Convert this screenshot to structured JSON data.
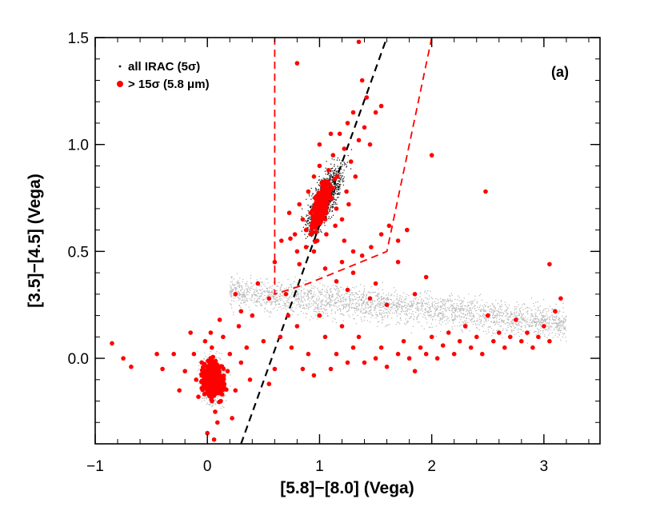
{
  "chart_data": {
    "type": "scatter",
    "panel_label": "(a)",
    "xlabel": "[5.8]−[8.0] (Vega)",
    "ylabel": "[3.5]−[4.5] (Vega)",
    "xlim": [
      -1.0,
      3.5
    ],
    "ylim": [
      -0.4,
      1.5
    ],
    "x_ticks": [
      -1,
      0,
      1,
      2,
      3
    ],
    "x_tick_labels": [
      "−1",
      "0",
      "1",
      "2",
      "3"
    ],
    "y_ticks": [
      0.0,
      0.5,
      1.0,
      1.5
    ],
    "y_tick_labels": [
      "0.0",
      "0.5",
      "1.0",
      "1.5"
    ],
    "legend": {
      "position": "top-left",
      "entries": [
        {
          "label": "all IRAC (5σ)",
          "marker": "small-dot",
          "color": "#000000"
        },
        {
          "label": "> 15σ (5.8 μm)",
          "marker": "filled-circle",
          "color": "#ff0000"
        }
      ]
    },
    "colors": {
      "bright": "#ff0000",
      "faint_agn": "#111111",
      "faint_gray": "#b8b8b8",
      "diagonal_line": "#000000",
      "wedge": "#ff0000"
    },
    "series": [
      {
        "name": "all IRAC (5σ)",
        "note": "very dense distribution; representative clusters",
        "clusters": [
          {
            "shade": "gray",
            "x_range": [
              0.2,
              3.2
            ],
            "y_range": [
              -0.15,
              0.55
            ],
            "count_hint": "thousands",
            "center": [
              1.5,
              0.2
            ]
          },
          {
            "shade": "dark",
            "x_range": [
              0.6,
              1.6
            ],
            "y_range": [
              0.3,
              1.3
            ],
            "count_hint": "hundreds",
            "center": [
              1.05,
              0.75
            ]
          },
          {
            "shade": "gray",
            "x_range": [
              -0.2,
              0.4
            ],
            "y_range": [
              -0.35,
              0.2
            ],
            "count_hint": "hundreds",
            "center": [
              0.05,
              -0.1
            ]
          }
        ]
      },
      {
        "name": "> 15σ (5.8 μm)",
        "points": [
          [
            0.05,
            -0.08
          ],
          [
            0.08,
            -0.1
          ],
          [
            0.02,
            -0.12
          ],
          [
            0.1,
            -0.05
          ],
          [
            0.0,
            -0.15
          ],
          [
            0.12,
            -0.2
          ],
          [
            -0.05,
            -0.02
          ],
          [
            0.15,
            -0.12
          ],
          [
            0.04,
            0.05
          ],
          [
            -0.08,
            -0.18
          ],
          [
            0.18,
            -0.06
          ],
          [
            0.07,
            -0.25
          ],
          [
            -0.02,
            0.08
          ],
          [
            0.2,
            0.02
          ],
          [
            -0.1,
            -0.1
          ],
          [
            0.09,
            -0.3
          ],
          [
            0.25,
            -0.15
          ],
          [
            0.03,
            0.12
          ],
          [
            -0.12,
            0.02
          ],
          [
            0.14,
            0.1
          ],
          [
            0.3,
            -0.02
          ],
          [
            -0.2,
            -0.06
          ],
          [
            0.22,
            -0.28
          ],
          [
            0.0,
            -0.35
          ],
          [
            0.35,
            0.05
          ],
          [
            -0.25,
            -0.15
          ],
          [
            0.28,
            0.15
          ],
          [
            0.11,
            0.18
          ],
          [
            -0.15,
            0.12
          ],
          [
            0.38,
            -0.1
          ],
          [
            0.06,
            -0.38
          ],
          [
            -0.3,
            0.02
          ],
          [
            -0.85,
            0.07
          ],
          [
            -0.75,
            0.0
          ],
          [
            -0.68,
            -0.04
          ],
          [
            -0.4,
            -0.05
          ],
          [
            -0.45,
            0.02
          ],
          [
            0.5,
            0.08
          ],
          [
            0.6,
            -0.05
          ],
          [
            0.55,
            -0.12
          ],
          [
            0.65,
            0.1
          ],
          [
            0.7,
            0.3
          ],
          [
            0.72,
            0.2
          ],
          [
            0.8,
            0.15
          ],
          [
            0.75,
            0.05
          ],
          [
            0.85,
            -0.05
          ],
          [
            0.9,
            0.02
          ],
          [
            0.95,
            -0.08
          ],
          [
            1.0,
            0.2
          ],
          [
            1.05,
            0.1
          ],
          [
            1.1,
            -0.05
          ],
          [
            1.15,
            0.02
          ],
          [
            1.2,
            0.15
          ],
          [
            1.25,
            -0.02
          ],
          [
            1.3,
            0.05
          ],
          [
            1.35,
            0.1
          ],
          [
            1.4,
            -0.02
          ],
          [
            1.5,
            0.0
          ],
          [
            1.55,
            0.05
          ],
          [
            1.6,
            -0.04
          ],
          [
            1.7,
            0.02
          ],
          [
            1.75,
            0.08
          ],
          [
            1.8,
            0.0
          ],
          [
            1.85,
            -0.06
          ],
          [
            1.9,
            0.05
          ],
          [
            1.95,
            0.02
          ],
          [
            2.0,
            0.1
          ],
          [
            2.05,
            0.0
          ],
          [
            2.1,
            0.06
          ],
          [
            2.15,
            0.12
          ],
          [
            2.2,
            0.02
          ],
          [
            2.25,
            0.08
          ],
          [
            2.3,
            0.15
          ],
          [
            2.35,
            0.05
          ],
          [
            2.4,
            0.1
          ],
          [
            2.45,
            0.02
          ],
          [
            2.5,
            0.2
          ],
          [
            2.55,
            0.08
          ],
          [
            2.6,
            0.12
          ],
          [
            2.65,
            0.05
          ],
          [
            2.7,
            0.1
          ],
          [
            2.75,
            0.18
          ],
          [
            2.8,
            0.08
          ],
          [
            2.85,
            0.12
          ],
          [
            2.9,
            0.05
          ],
          [
            2.95,
            0.1
          ],
          [
            3.0,
            0.15
          ],
          [
            3.05,
            0.08
          ],
          [
            3.1,
            0.22
          ],
          [
            3.15,
            0.28
          ],
          [
            3.05,
            0.44
          ],
          [
            2.48,
            0.78
          ],
          [
            2.0,
            0.95
          ],
          [
            1.95,
            0.38
          ],
          [
            1.85,
            0.3
          ],
          [
            1.7,
            0.45
          ],
          [
            1.6,
            0.25
          ],
          [
            1.5,
            0.35
          ],
          [
            1.45,
            0.28
          ],
          [
            1.3,
            0.4
          ],
          [
            1.25,
            0.32
          ],
          [
            1.2,
            0.45
          ],
          [
            1.15,
            0.36
          ],
          [
            1.05,
            0.42
          ],
          [
            0.98,
            0.55
          ],
          [
            0.95,
            0.5
          ],
          [
            0.88,
            0.6
          ],
          [
            0.85,
            0.65
          ],
          [
            0.82,
            0.72
          ],
          [
            0.9,
            0.78
          ],
          [
            0.95,
            0.85
          ],
          [
            1.0,
            0.9
          ],
          [
            1.05,
            0.8
          ],
          [
            1.1,
            0.75
          ],
          [
            1.15,
            0.7
          ],
          [
            1.2,
            0.65
          ],
          [
            1.0,
            0.7
          ],
          [
            0.92,
            0.68
          ],
          [
            0.96,
            0.75
          ],
          [
            1.02,
            0.82
          ],
          [
            1.08,
            0.88
          ],
          [
            1.12,
            0.95
          ],
          [
            1.18,
            1.05
          ],
          [
            1.25,
            1.1
          ],
          [
            1.3,
            1.15
          ],
          [
            1.35,
            1.02
          ],
          [
            1.22,
            0.98
          ],
          [
            1.28,
            0.92
          ],
          [
            1.4,
            1.08
          ],
          [
            1.45,
            1.0
          ],
          [
            1.5,
            1.15
          ],
          [
            1.55,
            1.18
          ],
          [
            1.38,
            1.3
          ],
          [
            1.42,
            1.22
          ],
          [
            1.35,
            1.48
          ],
          [
            0.73,
            0.68
          ],
          [
            0.78,
            0.58
          ],
          [
            0.8,
            0.5
          ],
          [
            0.74,
            0.56
          ],
          [
            0.82,
            0.44
          ],
          [
            0.88,
            0.52
          ],
          [
            0.93,
            0.62
          ],
          [
            1.06,
            0.58
          ],
          [
            1.14,
            0.62
          ],
          [
            1.22,
            0.55
          ],
          [
            1.3,
            0.5
          ],
          [
            1.38,
            0.48
          ],
          [
            1.46,
            0.52
          ],
          [
            1.55,
            0.58
          ],
          [
            1.62,
            0.62
          ],
          [
            1.7,
            0.55
          ],
          [
            1.78,
            0.6
          ],
          [
            0.6,
            0.45
          ],
          [
            0.8,
            1.38
          ],
          [
            0.66,
            0.55
          ],
          [
            0.3,
            0.22
          ],
          [
            0.25,
            0.3
          ],
          [
            0.4,
            0.2
          ],
          [
            0.45,
            0.35
          ],
          [
            0.55,
            0.28
          ],
          [
            1.1,
            1.05
          ],
          [
            1.0,
            1.0
          ],
          [
            1.16,
            0.85
          ],
          [
            1.24,
            0.78
          ],
          [
            1.32,
            0.85
          ],
          [
            1.05,
            0.65
          ],
          [
            0.99,
            0.72
          ],
          [
            1.26,
            0.72
          ]
        ]
      }
    ],
    "overlays": [
      {
        "name": "diagonal-line",
        "style": "dashed",
        "color": "#000000",
        "points": [
          [
            0.3,
            -0.4
          ],
          [
            1.6,
            1.5
          ]
        ]
      },
      {
        "name": "agn-wedge",
        "style": "dashed",
        "color": "#ff0000",
        "points": [
          [
            0.6,
            1.5
          ],
          [
            0.6,
            0.3
          ],
          [
            0.9,
            0.35
          ],
          [
            1.6,
            0.5
          ],
          [
            2.0,
            1.5
          ]
        ]
      }
    ]
  }
}
